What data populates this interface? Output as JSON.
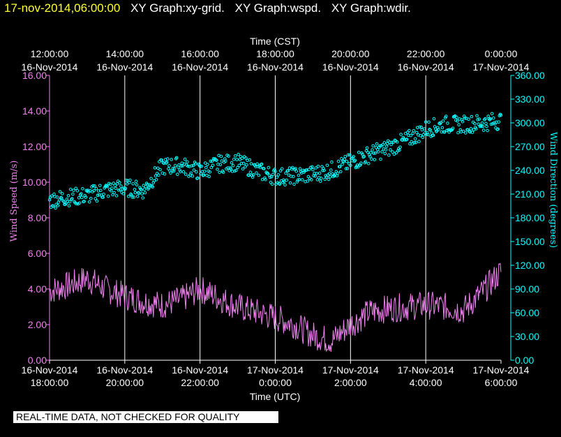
{
  "header": {
    "datetime": "17-nov-2014,06:00:00",
    "graphs": [
      "XY Graph:xy-grid.",
      "XY Graph:wspd.",
      "XY Graph:wdir."
    ]
  },
  "footer": {
    "disclaimer": "REAL-TIME DATA, NOT CHECKED FOR QUALITY"
  },
  "colors": {
    "background": "#000000",
    "title_date": "#ffff33",
    "wind_speed": "#ee82ee",
    "wind_direction": "#00ffff",
    "grid": "#ffffff"
  },
  "chart_data": {
    "type": "line",
    "top_axis": {
      "label": "Time (CST)",
      "ticks": [
        {
          "time": "12:00:00",
          "date": "16-Nov-2014"
        },
        {
          "time": "14:00:00",
          "date": "16-Nov-2014"
        },
        {
          "time": "16:00:00",
          "date": "16-Nov-2014"
        },
        {
          "time": "18:00:00",
          "date": "16-Nov-2014"
        },
        {
          "time": "20:00:00",
          "date": "16-Nov-2014"
        },
        {
          "time": "22:00:00",
          "date": "16-Nov-2014"
        },
        {
          "time": "0:00:00",
          "date": "17-Nov-2014"
        }
      ]
    },
    "bottom_axis": {
      "label": "Time (UTC)",
      "ticks": [
        {
          "date": "16-Nov-2014",
          "time": "18:00:00"
        },
        {
          "date": "16-Nov-2014",
          "time": "20:00:00"
        },
        {
          "date": "16-Nov-2014",
          "time": "22:00:00"
        },
        {
          "date": "17-Nov-2014",
          "time": "0:00:00"
        },
        {
          "date": "17-Nov-2014",
          "time": "2:00:00"
        },
        {
          "date": "17-Nov-2014",
          "time": "4:00:00"
        },
        {
          "date": "17-Nov-2014",
          "time": "6:00:00"
        }
      ]
    },
    "x_range_hours": [
      0,
      12
    ],
    "left_axis": {
      "label": "Wind Speed (m/s)",
      "ylim": [
        0,
        16
      ],
      "ticks": [
        "0.00",
        "2.00",
        "4.00",
        "6.00",
        "8.00",
        "10.00",
        "12.00",
        "14.00",
        "16.00"
      ]
    },
    "right_axis": {
      "label": "Wind Direction (degrees)",
      "ylim": [
        0,
        360
      ],
      "ticks": [
        "0.00",
        "30.00",
        "60.00",
        "90.00",
        "120.00",
        "150.00",
        "180.00",
        "210.00",
        "240.00",
        "270.00",
        "300.00",
        "330.00",
        "360.00"
      ]
    },
    "grid": "vertical",
    "series": [
      {
        "style": "line",
        "axis": "left",
        "x_hours": [
          0,
          0.5,
          1,
          1.5,
          2,
          2.5,
          3,
          3.5,
          4,
          4.5,
          5,
          5.5,
          6,
          6.5,
          7,
          7.5,
          8,
          8.5,
          9,
          9.5,
          10,
          10.5,
          11,
          11.5,
          12
        ],
        "values": [
          3.9,
          4.2,
          4.6,
          4.0,
          3.6,
          3.3,
          3.1,
          3.4,
          4.0,
          3.5,
          3.0,
          2.7,
          2.4,
          2.0,
          1.4,
          1.1,
          2.0,
          2.7,
          2.9,
          3.0,
          3.1,
          3.0,
          2.8,
          3.8,
          5.0
        ]
      },
      {
        "style": "scatter",
        "axis": "right",
        "x_hours": [
          0,
          0.5,
          1,
          1.5,
          2,
          2.5,
          3,
          3.5,
          4,
          4.5,
          5,
          5.5,
          6,
          6.5,
          7,
          7.5,
          8,
          8.5,
          9,
          9.5,
          10,
          10.5,
          11,
          11.5,
          12
        ],
        "values": [
          202,
          206,
          208,
          215,
          218,
          215,
          245,
          246,
          238,
          248,
          250,
          240,
          232,
          233,
          235,
          240,
          250,
          260,
          268,
          278,
          292,
          298,
          298,
          300,
          303
        ]
      }
    ]
  }
}
